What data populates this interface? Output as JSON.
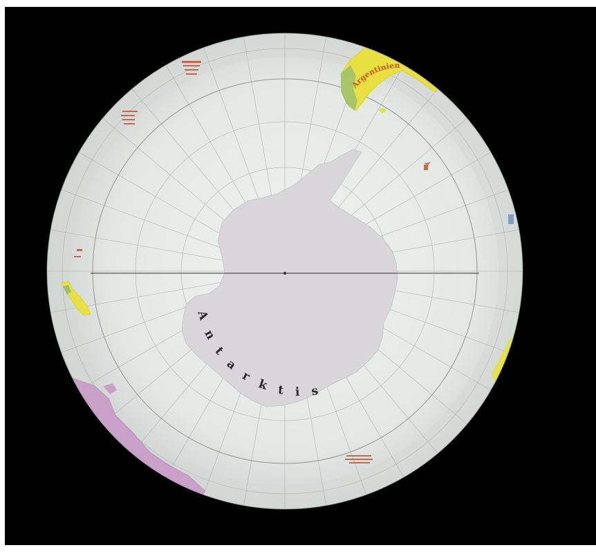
{
  "map": {
    "projection": "orthographic",
    "center": "south-pole",
    "colors": {
      "space": "#000000",
      "ocean_light": "#f0f4f1",
      "ocean_edge": "#c9cfcd",
      "antarctica": "#d8d6d8",
      "south_america": "#e8e040",
      "south_america_green": "#9cc070",
      "australia_region": "#c9a0c8",
      "africa_region": "#e8e040",
      "graticule": "#a9b0ad",
      "antarctic_circle": "#8e9692",
      "meridian_line": "#303030",
      "label_antarctica": "#2a2a2a",
      "label_argentina": "#c8561e",
      "label_small": "#c04a2a"
    },
    "labels": {
      "antarctica": "Antarktis",
      "argentina": "Argentinien"
    }
  }
}
